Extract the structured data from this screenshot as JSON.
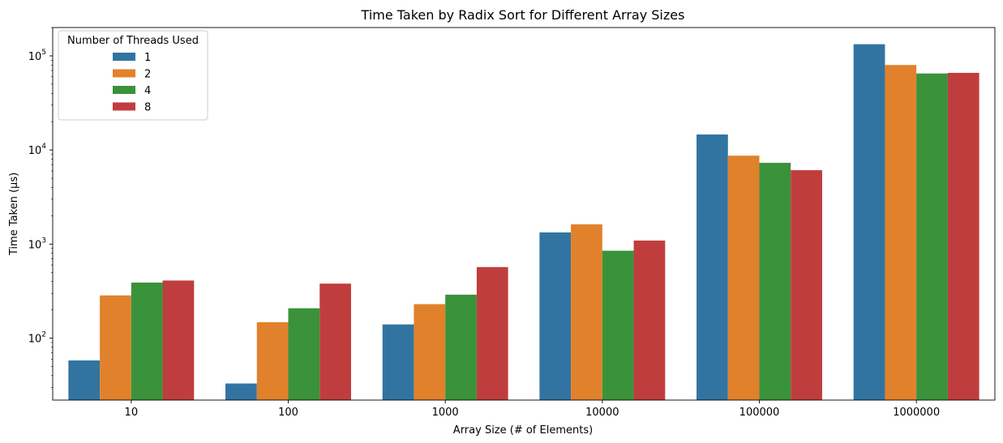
{
  "chart_data": {
    "type": "bar",
    "title": "Time Taken by Radix Sort for Different Array Sizes",
    "xlabel": "Array Size (# of Elements)",
    "ylabel": "Time Taken (µs)",
    "yscale": "log",
    "ylim": [
      22,
      200000
    ],
    "y_ticks": [
      {
        "value": 100,
        "base": "10",
        "exp": "2"
      },
      {
        "value": 1000,
        "base": "10",
        "exp": "3"
      },
      {
        "value": 10000,
        "base": "10",
        "exp": "4"
      },
      {
        "value": 100000,
        "base": "10",
        "exp": "5"
      }
    ],
    "grid": false,
    "categories": [
      "10",
      "100",
      "1000",
      "10000",
      "100000",
      "1000000"
    ],
    "legend": {
      "title": "Number of Threads Used",
      "position": "top-left"
    },
    "series": [
      {
        "name": "1",
        "color": "#3274a1",
        "values": [
          58,
          33,
          140,
          1330,
          14600,
          133000
        ]
      },
      {
        "name": "2",
        "color": "#e1812c",
        "values": [
          285,
          148,
          230,
          1620,
          8700,
          80000
        ]
      },
      {
        "name": "4",
        "color": "#3a923a",
        "values": [
          390,
          208,
          290,
          850,
          7300,
          65000
        ]
      },
      {
        "name": "8",
        "color": "#c03d3e",
        "values": [
          410,
          380,
          570,
          1090,
          6100,
          66000
        ]
      }
    ]
  }
}
